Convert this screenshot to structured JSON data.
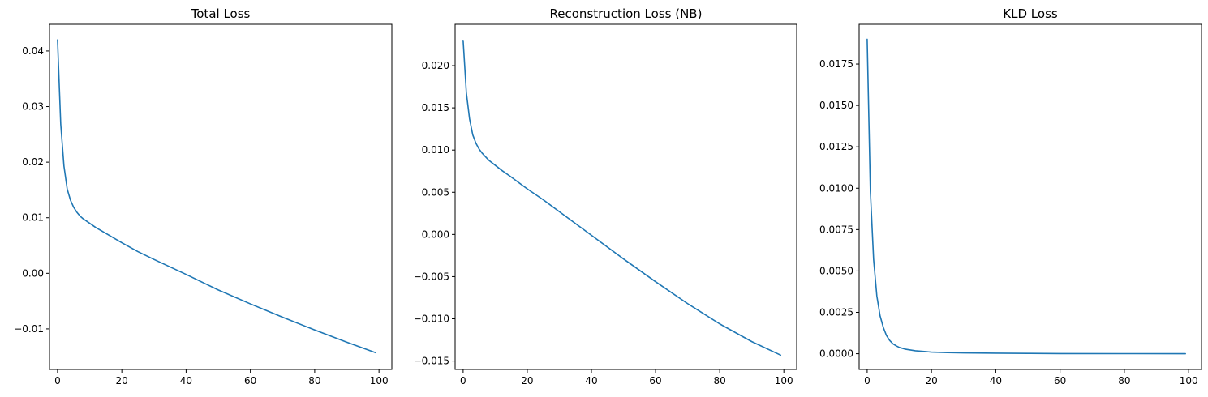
{
  "chart_data": [
    {
      "type": "line",
      "title": "Total Loss",
      "xlabel": "",
      "ylabel": "",
      "xlim": [
        -2.5,
        104
      ],
      "ylim": [
        -0.0173,
        0.0448
      ],
      "xticks": [
        0,
        20,
        40,
        60,
        80,
        100
      ],
      "yticks": [
        -0.01,
        0.0,
        0.01,
        0.02,
        0.03,
        0.04
      ],
      "ytick_labels": [
        "−0.01",
        "0.00",
        "0.01",
        "0.02",
        "0.03",
        "0.04"
      ],
      "xtick_labels": [
        "0",
        "20",
        "40",
        "60",
        "80",
        "100"
      ],
      "grid": false,
      "series": [
        {
          "color": "#1f77b4",
          "x": [
            0,
            1,
            2,
            3,
            4,
            5,
            6,
            7,
            8,
            9,
            10,
            12,
            15,
            20,
            25,
            30,
            40,
            50,
            60,
            70,
            80,
            90,
            99
          ],
          "y": [
            0.042,
            0.0268,
            0.0193,
            0.0152,
            0.0132,
            0.0119,
            0.011,
            0.0103,
            0.0098,
            0.0094,
            0.009,
            0.0082,
            0.0072,
            0.0055,
            0.0039,
            0.0025,
            -0.0002,
            -0.003,
            -0.0055,
            -0.0079,
            -0.0102,
            -0.0124,
            -0.0143
          ]
        }
      ]
    },
    {
      "type": "line",
      "title": "Reconstruction Loss (NB)",
      "xlabel": "",
      "ylabel": "",
      "xlim": [
        -2.5,
        104
      ],
      "ylim": [
        -0.016,
        0.0249
      ],
      "xticks": [
        0,
        20,
        40,
        60,
        80,
        100
      ],
      "yticks": [
        -0.015,
        -0.01,
        -0.005,
        0.0,
        0.005,
        0.01,
        0.015,
        0.02
      ],
      "ytick_labels": [
        "−0.015",
        "−0.010",
        "−0.005",
        "0.000",
        "0.005",
        "0.010",
        "0.015",
        "0.020"
      ],
      "xtick_labels": [
        "0",
        "20",
        "40",
        "60",
        "80",
        "100"
      ],
      "grid": false,
      "series": [
        {
          "color": "#1f77b4",
          "x": [
            0,
            1,
            2,
            3,
            4,
            5,
            6,
            7,
            8,
            9,
            10,
            12,
            15,
            20,
            25,
            30,
            40,
            50,
            60,
            70,
            80,
            90,
            99
          ],
          "y": [
            0.023,
            0.0168,
            0.0137,
            0.0118,
            0.0108,
            0.0101,
            0.0096,
            0.0092,
            0.0088,
            0.0085,
            0.0082,
            0.0076,
            0.0068,
            0.0054,
            0.0041,
            0.0027,
            -0.0001,
            -0.0029,
            -0.0056,
            -0.0082,
            -0.0106,
            -0.0127,
            -0.0143
          ]
        }
      ]
    },
    {
      "type": "line",
      "title": "KLD Loss",
      "xlabel": "",
      "ylabel": "",
      "xlim": [
        -2.5,
        104
      ],
      "ylim": [
        -0.00095,
        0.0199
      ],
      "xticks": [
        0,
        20,
        40,
        60,
        80,
        100
      ],
      "yticks": [
        0.0,
        0.0025,
        0.005,
        0.0075,
        0.01,
        0.0125,
        0.015,
        0.0175
      ],
      "ytick_labels": [
        "0.0000",
        "0.0025",
        "0.0050",
        "0.0075",
        "0.0100",
        "0.0125",
        "0.0150",
        "0.0175"
      ],
      "xtick_labels": [
        "0",
        "20",
        "40",
        "60",
        "80",
        "100"
      ],
      "grid": false,
      "series": [
        {
          "color": "#1f77b4",
          "x": [
            0,
            1,
            2,
            3,
            4,
            5,
            6,
            7,
            8,
            9,
            10,
            12,
            15,
            20,
            25,
            30,
            40,
            50,
            60,
            80,
            99
          ],
          "y": [
            0.019,
            0.0098,
            0.0057,
            0.0035,
            0.0023,
            0.0016,
            0.0011,
            0.0008,
            0.0006,
            0.00048,
            0.00038,
            0.00027,
            0.00018,
            0.0001,
            7e-05,
            5e-05,
            3e-05,
            2e-05,
            1e-05,
            5e-06,
            0.0
          ]
        }
      ]
    }
  ]
}
